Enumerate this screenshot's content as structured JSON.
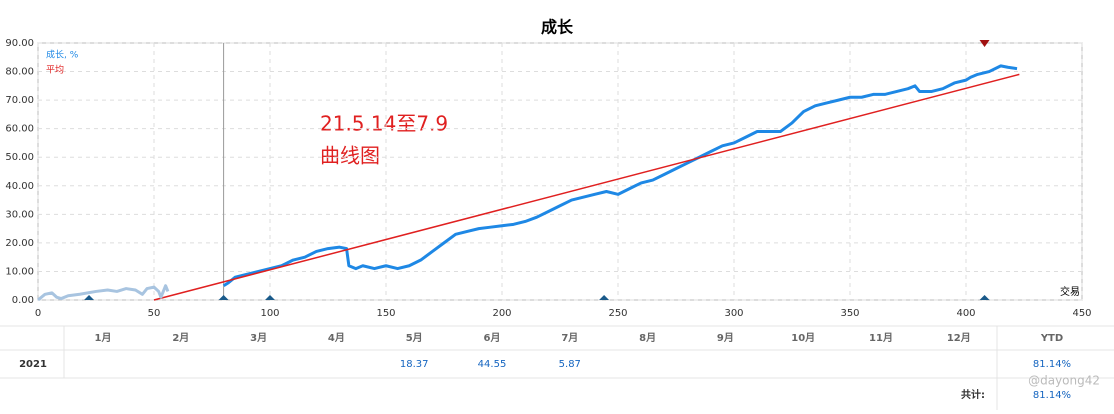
{
  "chart_data": {
    "type": "line",
    "title": "成长",
    "x_label": "交易",
    "xlim": [
      0,
      450
    ],
    "xticks": [
      0,
      50,
      100,
      150,
      200,
      250,
      300,
      350,
      400,
      450
    ],
    "ylim": [
      0,
      90
    ],
    "yticks": [
      {
        "value": 0,
        "label": "0.00"
      },
      {
        "value": 10,
        "label": "10.00"
      },
      {
        "value": 20,
        "label": "20.00"
      },
      {
        "value": 30,
        "label": "30.00"
      },
      {
        "value": 40,
        "label": "40.00"
      },
      {
        "value": 50,
        "label": "50.00"
      },
      {
        "value": 60,
        "label": "60.00"
      },
      {
        "value": 70,
        "label": "70.00"
      },
      {
        "value": 80,
        "label": "80.00"
      },
      {
        "value": 90,
        "label": "90.00"
      }
    ],
    "grid": true,
    "series": [
      {
        "name": "成长, %",
        "color": "#1e88e5",
        "x": [
          80,
          82,
          85,
          90,
          95,
          100,
          105,
          110,
          115,
          120,
          125,
          130,
          133,
          134,
          137,
          140,
          145,
          150,
          155,
          160,
          165,
          170,
          175,
          180,
          185,
          190,
          195,
          200,
          205,
          210,
          215,
          220,
          225,
          230,
          235,
          240,
          245,
          250,
          255,
          260,
          265,
          270,
          275,
          280,
          285,
          290,
          295,
          300,
          305,
          310,
          315,
          320,
          325,
          330,
          335,
          340,
          345,
          350,
          355,
          360,
          365,
          370,
          375,
          378,
          380,
          385,
          390,
          395,
          400,
          402,
          405,
          410,
          415,
          418,
          422
        ],
        "values": [
          5,
          6,
          8,
          9,
          10,
          11,
          12,
          14,
          15,
          17,
          18,
          18.5,
          18,
          12,
          11,
          12,
          11,
          12,
          11,
          12,
          14,
          17,
          20,
          23,
          24,
          25,
          25.5,
          26,
          26.5,
          27.5,
          29,
          31,
          33,
          35,
          36,
          37,
          38,
          37,
          39,
          41,
          42,
          44,
          46,
          48,
          50,
          52,
          54,
          55,
          57,
          59,
          59,
          59,
          62,
          66,
          68,
          69,
          70,
          71,
          71,
          72,
          72,
          73,
          74,
          75,
          73,
          73,
          74,
          76,
          77,
          78,
          79,
          80,
          82,
          81.5,
          81
        ]
      },
      {
        "name": "平均",
        "color": "#e02020",
        "x": [
          50,
          423
        ],
        "values": [
          0,
          79
        ]
      },
      {
        "color": "#a8c4e0",
        "x": [
          0,
          3,
          6,
          8,
          10,
          13,
          18,
          25,
          30,
          34,
          38,
          42,
          45,
          47,
          50,
          52,
          53,
          55,
          56
        ],
        "values": [
          0,
          2,
          2.5,
          1,
          0.5,
          1.5,
          2,
          3,
          3.5,
          3,
          4,
          3.5,
          2,
          4,
          4.5,
          3,
          1,
          5,
          3
        ]
      }
    ],
    "annotations": [
      "21.5.14至7.9",
      "曲线图"
    ],
    "cursor_x": 80,
    "trade_markers": [
      22,
      80,
      100,
      244,
      408
    ],
    "top_markers": [
      408
    ]
  },
  "table": {
    "header": [
      "1月",
      "2月",
      "3月",
      "4月",
      "5月",
      "6月",
      "7月",
      "8月",
      "9月",
      "10月",
      "11月",
      "12月",
      "YTD"
    ],
    "rows": [
      {
        "label": "2021",
        "cells": [
          null,
          null,
          null,
          null,
          "18.37",
          "44.55",
          "5.87",
          null,
          null,
          null,
          null,
          null,
          "81.14%"
        ]
      }
    ],
    "total": {
      "label": "共计:",
      "value": "81.14%"
    }
  },
  "watermark": "@dayong42"
}
